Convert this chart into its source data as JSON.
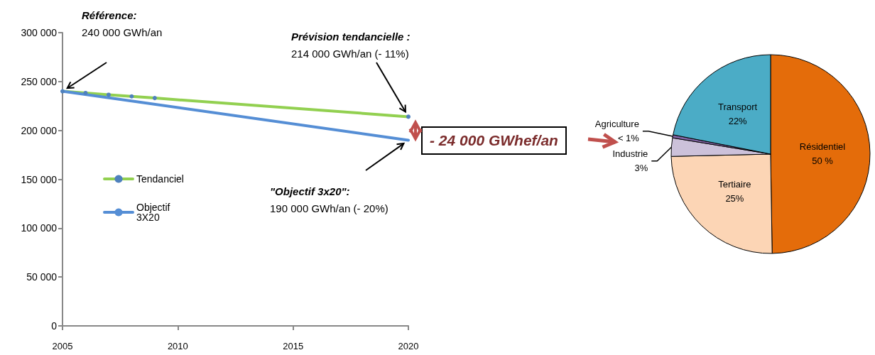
{
  "chart_data": [
    {
      "type": "line",
      "xlim": [
        2005,
        2020
      ],
      "xticks": [
        2005,
        2010,
        2015,
        2020
      ],
      "ylim": [
        0,
        300000
      ],
      "yticks": [
        {
          "value": 0,
          "label": "0"
        },
        {
          "value": 50000,
          "label": "50 000"
        },
        {
          "value": 100000,
          "label": "100 000"
        },
        {
          "value": 150000,
          "label": "150 000"
        },
        {
          "value": 200000,
          "label": "200 000"
        },
        {
          "value": 250000,
          "label": "250 000"
        },
        {
          "value": 300000,
          "label": "300 000"
        }
      ],
      "grid": false,
      "legend": "left",
      "line_style": "solid",
      "series": [
        {
          "name": "Tendanciel",
          "color": "#92d050",
          "marker": "circle",
          "x": [
            2005,
            2006,
            2007,
            2008,
            2009,
            2020
          ],
          "values": [
            240000,
            238300,
            236500,
            234800,
            233100,
            214000
          ]
        },
        {
          "name": "Objectif 3X20",
          "color": "#558ed5",
          "marker": "none",
          "x": [
            2005,
            2020
          ],
          "values": [
            240000,
            190000
          ]
        }
      ],
      "annotations": [
        "Référence:\n240 000 GWh/an",
        "Prévision tendancielle :\n214 000 GWh/an (- 11%)",
        "\"Objectif 3x20\":\n190 000 GWh/an (- 20%)",
        "- 24 000 GWhef/an"
      ]
    },
    {
      "type": "pie",
      "categories": [
        "Résidentiel",
        "Tertiaire",
        "Industrie",
        "Agriculture",
        "Transport"
      ],
      "values": [
        50,
        25,
        3,
        0.5,
        22
      ],
      "colors": [
        "#e46c0a",
        "#fcd5b5",
        "#ccc1da",
        "#8064a2",
        "#4bacc6"
      ],
      "value_labels": [
        "50 %",
        "25%",
        "3%",
        "< 1%",
        "22%"
      ]
    }
  ]
}
